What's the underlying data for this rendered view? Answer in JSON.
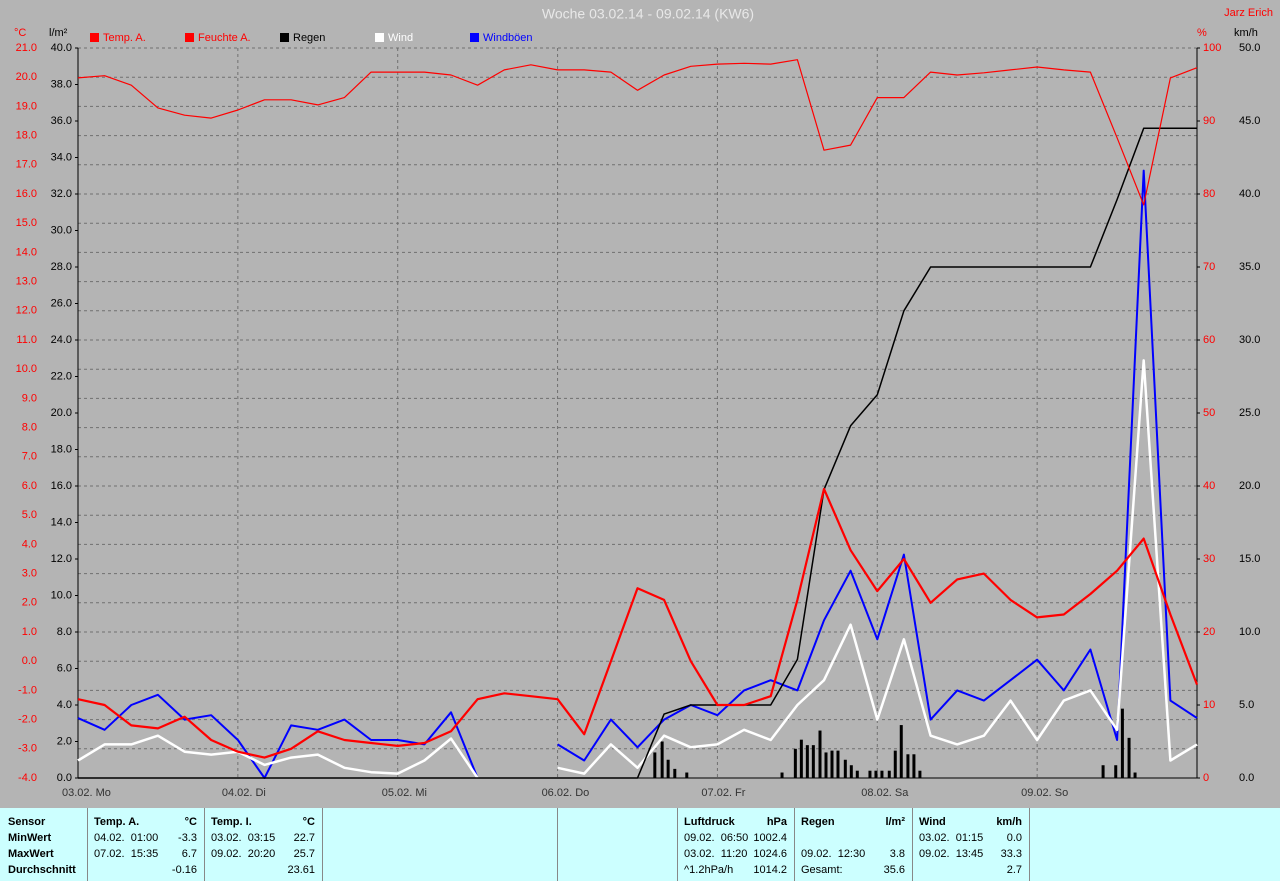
{
  "chart_data": {
    "type": "line",
    "title": "Woche 03.02.14 - 09.02.14 (KW6)",
    "author": "Jarz Erich",
    "y_label": "°C",
    "y3_label": "l/m²",
    "y2_label": "%",
    "y4_label": "km/h",
    "grid": true,
    "x": [
      0,
      4,
      8,
      12,
      16,
      20,
      24,
      28,
      32,
      36,
      40,
      44,
      48,
      52,
      56,
      60,
      64,
      68,
      72,
      76,
      80,
      84,
      88,
      92,
      96,
      100,
      104,
      108,
      112,
      116,
      120,
      124,
      128,
      132,
      136,
      140,
      144,
      148,
      152,
      156,
      160,
      164,
      168
    ],
    "xlim": [
      0,
      168
    ],
    "xticks": [
      {
        "value": 0,
        "label": "03.02.  Mo"
      },
      {
        "value": 24,
        "label": "04.02.  Di"
      },
      {
        "value": 48,
        "label": "05.02.  Mi"
      },
      {
        "value": 72,
        "label": "06.02.  Do"
      },
      {
        "value": 96,
        "label": "07.02.  Fr"
      },
      {
        "value": 120,
        "label": "08.02.  Sa"
      },
      {
        "value": 144,
        "label": "09.02.  So"
      }
    ],
    "ylim": [
      -4,
      21
    ],
    "yticks": [
      {
        "value": -4,
        "label": "-4.0"
      },
      {
        "value": -3,
        "label": "-3.0"
      },
      {
        "value": -2,
        "label": "-2.0"
      },
      {
        "value": -1,
        "label": "-1.0"
      },
      {
        "value": 0,
        "label": "0.0"
      },
      {
        "value": 1,
        "label": "1.0"
      },
      {
        "value": 2,
        "label": "2.0"
      },
      {
        "value": 3,
        "label": "3.0"
      },
      {
        "value": 4,
        "label": "4.0"
      },
      {
        "value": 5,
        "label": "5.0"
      },
      {
        "value": 6,
        "label": "6.0"
      },
      {
        "value": 7,
        "label": "7.0"
      },
      {
        "value": 8,
        "label": "8.0"
      },
      {
        "value": 9,
        "label": "9.0"
      },
      {
        "value": 10,
        "label": "10.0"
      },
      {
        "value": 11,
        "label": "11.0"
      },
      {
        "value": 12,
        "label": "12.0"
      },
      {
        "value": 13,
        "label": "13.0"
      },
      {
        "value": 14,
        "label": "14.0"
      },
      {
        "value": 15,
        "label": "15.0"
      },
      {
        "value": 16,
        "label": "16.0"
      },
      {
        "value": 17,
        "label": "17.0"
      },
      {
        "value": 18,
        "label": "18.0"
      },
      {
        "value": 19,
        "label": "19.0"
      },
      {
        "value": 20,
        "label": "20.0"
      },
      {
        "value": 21,
        "label": "21.0"
      }
    ],
    "y3lim": [
      0,
      40
    ],
    "y3ticks": [
      {
        "value": 0,
        "label": "0.0"
      },
      {
        "value": 2,
        "label": "2.0"
      },
      {
        "value": 4,
        "label": "4.0"
      },
      {
        "value": 6,
        "label": "6.0"
      },
      {
        "value": 8,
        "label": "8.0"
      },
      {
        "value": 10,
        "label": "10.0"
      },
      {
        "value": 12,
        "label": "12.0"
      },
      {
        "value": 14,
        "label": "14.0"
      },
      {
        "value": 16,
        "label": "16.0"
      },
      {
        "value": 18,
        "label": "18.0"
      },
      {
        "value": 20,
        "label": "20.0"
      },
      {
        "value": 22,
        "label": "22.0"
      },
      {
        "value": 24,
        "label": "24.0"
      },
      {
        "value": 26,
        "label": "26.0"
      },
      {
        "value": 28,
        "label": "28.0"
      },
      {
        "value": 30,
        "label": "30.0"
      },
      {
        "value": 32,
        "label": "32.0"
      },
      {
        "value": 34,
        "label": "34.0"
      },
      {
        "value": 36,
        "label": "36.0"
      },
      {
        "value": 38,
        "label": "38.0"
      },
      {
        "value": 40,
        "label": "40.0"
      }
    ],
    "y2lim": [
      0,
      100
    ],
    "y2ticks": [
      0,
      10,
      20,
      30,
      40,
      50,
      60,
      70,
      80,
      90,
      100
    ],
    "y4lim": [
      0,
      50
    ],
    "y4ticks": [
      {
        "value": 0,
        "label": "0.0"
      },
      {
        "value": 5,
        "label": "5.0"
      },
      {
        "value": 10,
        "label": "10.0"
      },
      {
        "value": 15,
        "label": "15.0"
      },
      {
        "value": 20,
        "label": "20.0"
      },
      {
        "value": 25,
        "label": "25.0"
      },
      {
        "value": 30,
        "label": "30.0"
      },
      {
        "value": 35,
        "label": "35.0"
      },
      {
        "value": 40,
        "label": "40.0"
      },
      {
        "value": 45,
        "label": "45.0"
      },
      {
        "value": 50,
        "label": "50.0"
      }
    ],
    "series": [
      {
        "name": "Temp. A.",
        "color": "#ff0000",
        "axis": "y",
        "width": 2.2,
        "values": [
          -1.3,
          -1.5,
          -2.2,
          -2.3,
          -1.9,
          -2.7,
          -3.1,
          -3.3,
          -3.0,
          -2.4,
          -2.7,
          -2.8,
          -2.9,
          -2.8,
          -2.4,
          -1.3,
          -1.1,
          -1.2,
          -1.3,
          -2.5,
          0.0,
          2.5,
          2.1,
          0.0,
          -1.5,
          -1.5,
          -1.2,
          2.1,
          5.9,
          3.8,
          2.4,
          3.5,
          2.0,
          2.8,
          3.0,
          2.1,
          1.5,
          1.6,
          2.3,
          3.1,
          4.2,
          1.6,
          -0.8
        ]
      },
      {
        "name": "Feuchte A.",
        "color": "#ff0000",
        "axis": "y2",
        "width": 1.2,
        "values": [
          95.9,
          96.2,
          94.9,
          91.8,
          90.8,
          90.4,
          91.5,
          92.9,
          92.9,
          92.2,
          93.2,
          96.7,
          96.7,
          96.7,
          96.3,
          94.9,
          97.0,
          97.7,
          97.0,
          97.0,
          96.7,
          94.2,
          96.3,
          97.5,
          97.8,
          97.9,
          97.8,
          98.4,
          86.0,
          86.7,
          93.2,
          93.2,
          96.7,
          96.3,
          96.6,
          97.0,
          97.4,
          97.0,
          96.7,
          87.7,
          78.5,
          95.9,
          97.3
        ]
      },
      {
        "name": "Regen",
        "color": "#000000",
        "axis": "y3",
        "width": 1.5,
        "values": [
          0,
          0,
          0,
          0,
          0,
          0,
          0,
          0,
          0,
          0,
          0,
          0,
          0,
          0,
          0,
          0,
          0,
          0,
          0,
          0,
          0,
          0,
          3.5,
          4.0,
          4.0,
          4.0,
          4.0,
          6.5,
          15.8,
          19.3,
          21.0,
          25.6,
          28.0,
          28.0,
          28.0,
          28.0,
          28.0,
          28.0,
          28.0,
          31.7,
          35.6,
          35.6,
          35.6
        ]
      },
      {
        "name": "Wind",
        "color": "#ffffff",
        "axis": "y4",
        "width": 2.5,
        "values": [
          1.2,
          2.3,
          2.3,
          2.9,
          1.8,
          1.6,
          1.8,
          0.9,
          1.4,
          1.6,
          0.7,
          0.4,
          0.3,
          1.2,
          2.7,
          0,
          null,
          null,
          0.7,
          0.3,
          2.3,
          0.7,
          2.9,
          2.1,
          2.3,
          3.3,
          2.6,
          5.0,
          6.7,
          10.5,
          4.0,
          9.5,
          2.9,
          2.3,
          2.9,
          5.3,
          2.6,
          5.3,
          6.0,
          3.3,
          28.6,
          1.2,
          2.3
        ]
      },
      {
        "name": "Windböen",
        "color": "#0000ff",
        "axis": "y4",
        "width": 2,
        "values": [
          4.1,
          3.3,
          5.0,
          5.7,
          4.0,
          4.3,
          2.6,
          0,
          3.6,
          3.3,
          4.0,
          2.6,
          2.6,
          2.3,
          4.5,
          0,
          null,
          null,
          2.3,
          1.2,
          4.0,
          2.1,
          4.0,
          5.0,
          4.3,
          6.0,
          6.7,
          6.0,
          10.8,
          14.2,
          9.5,
          15.3,
          4.0,
          6.0,
          5.3,
          6.7,
          8.1,
          6.0,
          8.8,
          2.6,
          41.6,
          5.3,
          4.1
        ]
      }
    ],
    "rain_bars": {
      "color": "#000000",
      "axis": "y3",
      "x": [
        86.6,
        87.7,
        88.6,
        89.6,
        91.4,
        105.7,
        107.7,
        108.6,
        109.5,
        110.4,
        111.4,
        112.3,
        113.2,
        114.1,
        115.2,
        116.1,
        117.0,
        118.9,
        119.8,
        120.7,
        121.8,
        122.7,
        123.6,
        124.6,
        125.5,
        126.4,
        153.9,
        155.8,
        156.8,
        157.8,
        158.7
      ],
      "values": [
        1.4,
        2.0,
        1.0,
        0.5,
        0.3,
        0.3,
        1.6,
        2.1,
        1.8,
        1.8,
        2.6,
        1.4,
        1.5,
        1.5,
        1.0,
        0.7,
        0.4,
        0.4,
        0.4,
        0.4,
        0.4,
        1.5,
        2.9,
        1.3,
        1.3,
        0.4,
        0.7,
        0.7,
        3.8,
        2.2,
        0.3
      ]
    }
  },
  "table": {
    "sensor": [
      "Sensor",
      "MinWert",
      "MaxWert",
      "Durchschnitt"
    ],
    "blocks": [
      {
        "header": [
          "Temp. A.",
          "°C"
        ],
        "rows": [
          [
            "04.02.  01:00",
            "-3.3"
          ],
          [
            "07.02.  15:35",
            "6.7"
          ],
          [
            "-0.16"
          ]
        ]
      },
      {
        "header": [
          "Temp. I.",
          "°C"
        ],
        "rows": [
          [
            "03.02.  03:15",
            "22.7"
          ],
          [
            "09.02.  20:20",
            "25.7"
          ],
          [
            "23.61"
          ]
        ]
      },
      {
        "header": [
          "Luftdruck",
          "hPa"
        ],
        "rows": [
          [
            "09.02.  06:50",
            "1002.4"
          ],
          [
            "03.02.  11:20",
            "1024.6"
          ],
          [
            "^1.2hPa/h",
            "1014.2"
          ]
        ]
      },
      {
        "header": [
          "Regen",
          "l/m²"
        ],
        "rows": [
          null,
          [
            "09.02.  12:30",
            "3.8"
          ],
          [
            "Gesamt:",
            "35.6"
          ]
        ]
      },
      {
        "header": [
          "Wind",
          "km/h"
        ],
        "rows": [
          [
            "03.02.  01:15",
            "0.0"
          ],
          [
            "09.02.  13:45",
            "33.3"
          ],
          [
            "2.7"
          ]
        ]
      }
    ]
  }
}
